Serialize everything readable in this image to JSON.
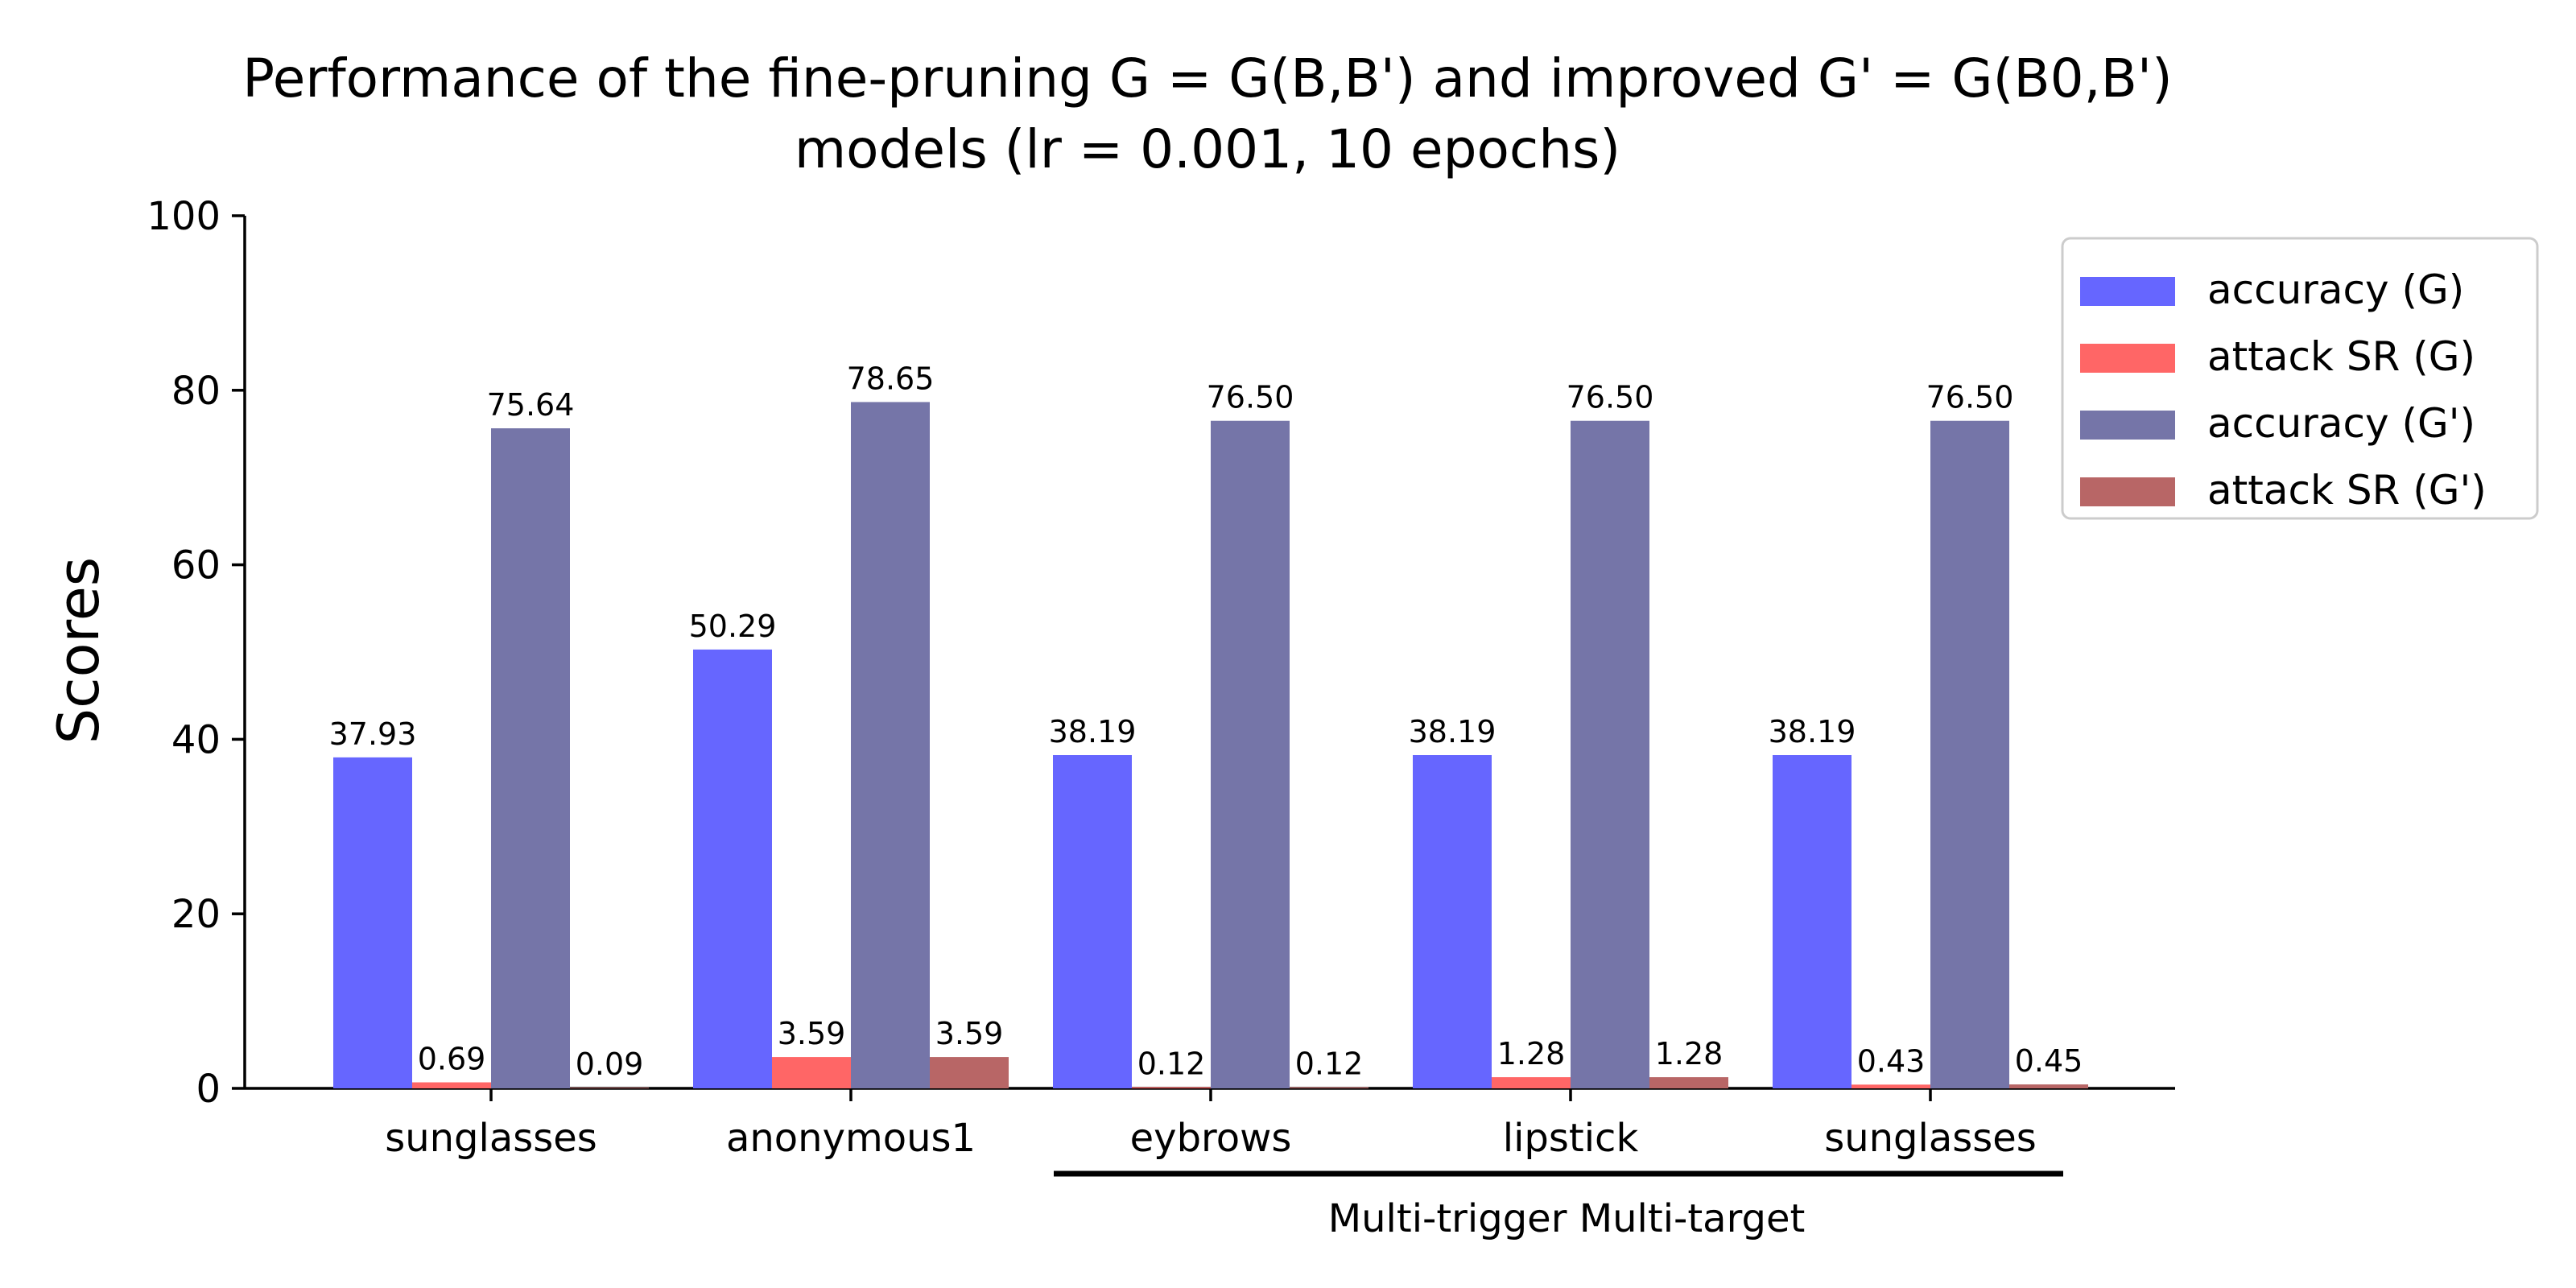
{
  "chart_data": {
    "type": "bar",
    "title_lines": [
      "Performance of the fine-pruning G = G(B,B') and improved G' = G(B0,B')",
      "models (lr = 0.001, 10 epochs)"
    ],
    "ylabel": "Scores",
    "xlabel": "",
    "ylim": [
      0,
      100
    ],
    "yticks": [
      0,
      20,
      40,
      60,
      80,
      100
    ],
    "categories": [
      "sunglasses",
      "anonymous1",
      "eybrows",
      "lipstick",
      "sunglasses"
    ],
    "series": [
      {
        "name": "accuracy (G)",
        "color": "#6666ff",
        "values": [
          37.93,
          50.29,
          38.19,
          38.19,
          38.19
        ],
        "labels": [
          "37.93",
          "50.29",
          "38.19",
          "38.19",
          "38.19"
        ]
      },
      {
        "name": "attack SR (G)",
        "color": "#ff6666",
        "values": [
          0.69,
          3.59,
          0.12,
          1.28,
          0.43
        ],
        "labels": [
          "0.69",
          "3.59",
          "0.12",
          "1.28",
          "0.43"
        ]
      },
      {
        "name": "accuracy (G')",
        "color": "#7575a8",
        "values": [
          75.64,
          78.65,
          76.5,
          76.5,
          76.5
        ],
        "labels": [
          "75.64",
          "78.65",
          "76.50",
          "76.50",
          "76.50"
        ]
      },
      {
        "name": "attack SR (G')",
        "color": "#b86666",
        "values": [
          0.09,
          3.59,
          0.12,
          1.28,
          0.45
        ],
        "labels": [
          "0.09",
          "3.59",
          "0.12",
          "1.28",
          "0.45"
        ]
      }
    ],
    "group_annotation": {
      "label": "Multi-trigger Multi-target",
      "from_category": 2,
      "to_category": 4
    },
    "legend_position": "upper-right",
    "grid": false
  }
}
